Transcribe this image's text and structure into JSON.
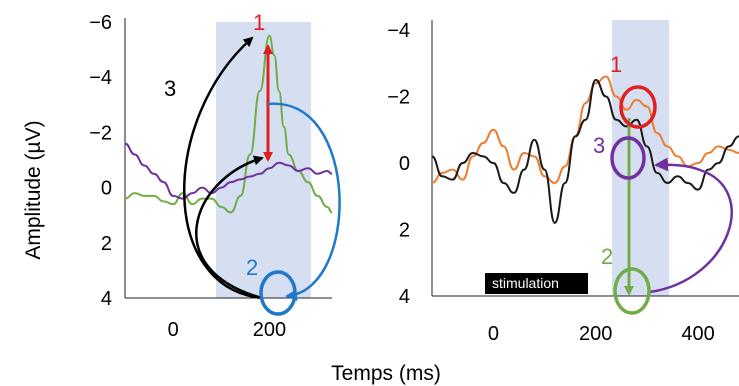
{
  "chart_data": [
    {
      "type": "line",
      "xlim": [
        -100,
        330
      ],
      "ylim": [
        -6,
        4
      ],
      "y_inverted": true,
      "x_ticks": [
        "0",
        "200"
      ],
      "x_tick_values": [
        0,
        200
      ],
      "y_ticks": [
        "−6",
        "−4",
        "−2",
        "0",
        "2",
        "4"
      ],
      "y_tick_values": [
        -6,
        -4,
        -2,
        0,
        2,
        4
      ],
      "ylabel": "Amplitude (µV)",
      "shaded_window": [
        85,
        295
      ],
      "series": [
        {
          "color": "#70ad47",
          "x": [
            -100,
            -80,
            -60,
            -40,
            -20,
            0,
            20,
            40,
            60,
            80,
            100,
            120,
            140,
            160,
            180,
            200,
            210,
            220,
            230,
            240,
            260,
            280,
            300,
            320,
            330
          ],
          "y": [
            0.4,
            0.2,
            0.3,
            0.3,
            0.5,
            0.6,
            0.2,
            0.6,
            0.4,
            0.4,
            0.7,
            0.9,
            0.3,
            -1.2,
            -3.5,
            -5.5,
            -4.8,
            -3.5,
            -2.2,
            -1.2,
            -0.6,
            -0.2,
            0.3,
            0.7,
            0.9
          ]
        },
        {
          "color": "#7030a0",
          "x": [
            -100,
            -80,
            -60,
            -40,
            -20,
            0,
            20,
            40,
            60,
            80,
            100,
            120,
            140,
            160,
            180,
            200,
            220,
            240,
            260,
            280,
            300,
            320,
            330
          ],
          "y": [
            -1.6,
            -1.2,
            -0.8,
            -0.5,
            -0.2,
            0.3,
            0.4,
            0.2,
            0.0,
            0.2,
            0.0,
            -0.2,
            -0.3,
            -0.4,
            -0.5,
            -0.7,
            -0.9,
            -0.8,
            -0.6,
            -0.7,
            -0.5,
            -0.6,
            -0.5
          ]
        }
      ],
      "annotations": [
        {
          "label": "1",
          "color": "#e02020",
          "kind": "double-arrow",
          "x": 200,
          "y_from": -5.5,
          "y_to": -1.0
        },
        {
          "label": "2",
          "color": "#1f78c8",
          "kind": "circle",
          "x": 200,
          "y": 3.9
        },
        {
          "label": "3",
          "color": "#000000",
          "kind": "arrows",
          "x_from": 200,
          "y_from": 4.0,
          "targets_y": [
            -5.5,
            -1.2
          ]
        }
      ]
    },
    {
      "type": "line",
      "xlim": [
        -120,
        480
      ],
      "ylim": [
        -4,
        4
      ],
      "y_inverted": true,
      "x_ticks": [
        "0",
        "200",
        "400"
      ],
      "x_tick_values": [
        0,
        200,
        400
      ],
      "y_ticks": [
        "−4",
        "−2",
        "0",
        "2",
        "4"
      ],
      "y_tick_values": [
        -4,
        -2,
        0,
        2,
        4
      ],
      "shaded_window": [
        240,
        345
      ],
      "stimulation_label": "stimulation",
      "series": [
        {
          "color": "#ed7d31",
          "x": [
            -120,
            -100,
            -80,
            -60,
            -40,
            -20,
            0,
            20,
            40,
            60,
            80,
            100,
            120,
            140,
            160,
            180,
            200,
            220,
            240,
            260,
            280,
            300,
            320,
            340,
            360,
            380,
            400,
            420,
            440,
            460,
            480
          ],
          "y": [
            0.6,
            0.3,
            0.2,
            0.5,
            -0.2,
            -0.6,
            -1.0,
            -0.5,
            0.2,
            -0.3,
            -0.2,
            0.4,
            0.6,
            0.1,
            -0.8,
            -1.8,
            -2.4,
            -2.6,
            -2.0,
            -1.6,
            -1.9,
            -1.7,
            -0.9,
            -0.5,
            -0.2,
            0.1,
            0.0,
            -0.3,
            -0.5,
            -0.4,
            -0.3
          ]
        },
        {
          "color": "#1a1a1a",
          "x": [
            -120,
            -100,
            -80,
            -60,
            -40,
            -20,
            0,
            20,
            40,
            60,
            80,
            100,
            120,
            140,
            160,
            180,
            200,
            220,
            240,
            260,
            280,
            300,
            320,
            340,
            360,
            380,
            400,
            420,
            440,
            460,
            480
          ],
          "y": [
            -0.2,
            0.4,
            0.5,
            0.0,
            -0.3,
            -0.2,
            0.0,
            0.6,
            0.9,
            0.2,
            -0.7,
            0.2,
            1.8,
            0.6,
            -0.8,
            -1.3,
            -2.5,
            -2.0,
            -1.3,
            -1.1,
            -1.3,
            -0.5,
            0.3,
            0.6,
            0.4,
            0.6,
            0.8,
            0.2,
            0.0,
            -0.5,
            -0.8
          ]
        }
      ],
      "annotations": [
        {
          "label": "1",
          "color": "#e02020",
          "kind": "circle",
          "x": 275,
          "y": -1.8
        },
        {
          "label": "3",
          "color": "#7030a0",
          "kind": "circle",
          "x": 275,
          "y": 0.1
        },
        {
          "label": "2",
          "color": "#70ad47",
          "kind": "circle",
          "x": 275,
          "y": 3.8
        }
      ]
    }
  ],
  "shared_xlabel": "Temps (ms)"
}
